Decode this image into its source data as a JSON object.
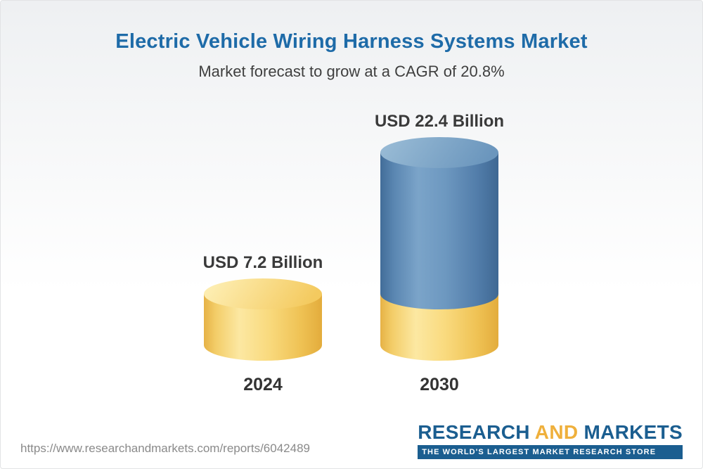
{
  "header": {
    "title": "Electric Vehicle Wiring Harness Systems Market",
    "subtitle": "Market forecast to grow at a CAGR of 20.8%"
  },
  "footer": {
    "url": "https://www.researchandmarkets.com/reports/6042489",
    "logo": {
      "research": "RESEARCH",
      "and": "AND",
      "markets": "MARKETS",
      "tagline": "THE WORLD'S LARGEST MARKET RESEARCH STORE"
    }
  },
  "colors": {
    "title_blue": "#1e6ba8",
    "cylinder_yellow": "#f7d171",
    "cylinder_blue": "#5d8bb6",
    "label_dark": "#3a3a3a",
    "logo_blue": "#1b5e90",
    "logo_gold": "#efb03c"
  },
  "chart_data": {
    "type": "bar",
    "style": "3d-cylinder",
    "categories": [
      "2024",
      "2030"
    ],
    "values": [
      7.2,
      22.4
    ],
    "value_labels": [
      "USD 7.2 Billion",
      "USD 22.4 Billion"
    ],
    "unit": "USD Billion",
    "title": "Electric Vehicle Wiring Harness Systems Market",
    "subtitle": "Market forecast to grow at a CAGR of 20.8%",
    "cagr": "20.8%",
    "legend": "none",
    "grid": "off",
    "note": "2030 cylinder is stacked: yellow base segment equals the 2024 value, blue portion above represents growth to 22.4"
  }
}
